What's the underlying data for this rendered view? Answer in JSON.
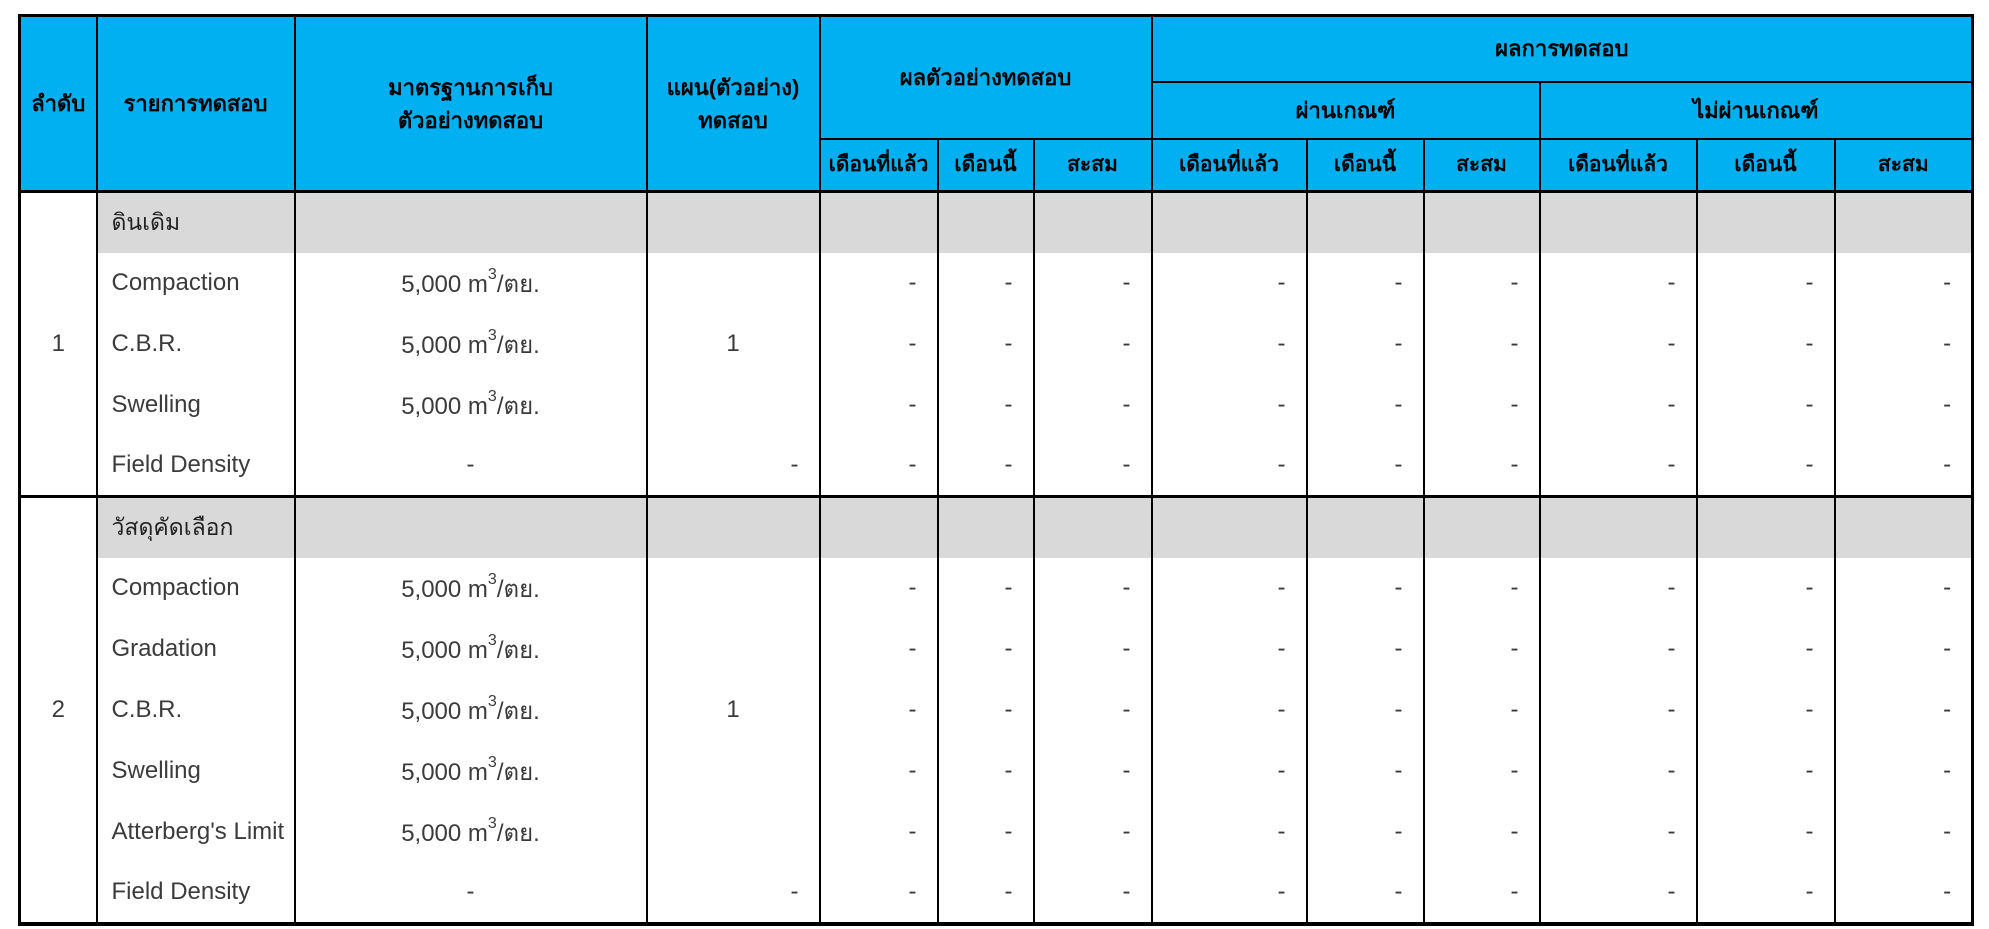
{
  "table": {
    "header": {
      "col_no": "ลำดับ",
      "col_item": "รายการทดสอบ",
      "col_standard_line1": "มาตรฐานการเก็บ",
      "col_standard_line2": "ตัวอย่างทดสอบ",
      "col_plan_line1": "แผน(ตัวอย่าง)",
      "col_plan_line2": "ทดสอบ",
      "group_sample_result": "ผลตัวอย่างทดสอบ",
      "group_test_result": "ผลการทดสอบ",
      "group_pass": "ผ่านเกณฑ์",
      "group_fail": "ไม่ผ่านเกณฑ์",
      "subcols": [
        "เดือนที่แล้ว",
        "เดือนนี้",
        "สะสม",
        "เดือนที่แล้ว",
        "เดือนนี้",
        "สะสม",
        "เดือนที่แล้ว",
        "เดือนนี้",
        "สะสม"
      ]
    },
    "sections": [
      {
        "no": "1",
        "title": "ดินเดิม",
        "plan": "1",
        "rows": [
          {
            "name": "Compaction",
            "standard": {
              "base": "5,000 m",
              "sup": "3",
              "unit": "/ตย."
            },
            "results": [
              "-",
              "-",
              "-",
              "-",
              "-",
              "-",
              "-",
              "-",
              "-"
            ]
          },
          {
            "name": "C.B.R.",
            "standard": {
              "base": "5,000 m",
              "sup": "3",
              "unit": "/ตย."
            },
            "results": [
              "-",
              "-",
              "-",
              "-",
              "-",
              "-",
              "-",
              "-",
              "-"
            ]
          },
          {
            "name": "Swelling",
            "standard": {
              "base": "5,000 m",
              "sup": "3",
              "unit": "/ตย."
            },
            "results": [
              "-",
              "-",
              "-",
              "-",
              "-",
              "-",
              "-",
              "-",
              "-"
            ]
          },
          {
            "name": "Field Density",
            "standard_dash": "-",
            "plan_dash": "-",
            "results": [
              "-",
              "-",
              "-",
              "-",
              "-",
              "-",
              "-",
              "-",
              "-"
            ]
          }
        ]
      },
      {
        "no": "2",
        "title": "วัสดุคัดเลือก",
        "plan": "1",
        "rows": [
          {
            "name": "Compaction",
            "standard": {
              "base": "5,000 m",
              "sup": "3",
              "unit": "/ตย."
            },
            "results": [
              "-",
              "-",
              "-",
              "-",
              "-",
              "-",
              "-",
              "-",
              "-"
            ]
          },
          {
            "name": "Gradation",
            "standard": {
              "base": "5,000 m",
              "sup": "3",
              "unit": "/ตย."
            },
            "results": [
              "-",
              "-",
              "-",
              "-",
              "-",
              "-",
              "-",
              "-",
              "-"
            ]
          },
          {
            "name": "C.B.R.",
            "standard": {
              "base": "5,000 m",
              "sup": "3",
              "unit": "/ตย."
            },
            "results": [
              "-",
              "-",
              "-",
              "-",
              "-",
              "-",
              "-",
              "-",
              "-"
            ]
          },
          {
            "name": "Swelling",
            "standard": {
              "base": "5,000 m",
              "sup": "3",
              "unit": "/ตย."
            },
            "results": [
              "-",
              "-",
              "-",
              "-",
              "-",
              "-",
              "-",
              "-",
              "-"
            ]
          },
          {
            "name": "Atterberg's Limit",
            "standard": {
              "base": "5,000 m",
              "sup": "3",
              "unit": "/ตย."
            },
            "results": [
              "-",
              "-",
              "-",
              "-",
              "-",
              "-",
              "-",
              "-",
              "-"
            ]
          },
          {
            "name": "Field Density",
            "standard_dash": "-",
            "plan_dash": "-",
            "results": [
              "-",
              "-",
              "-",
              "-",
              "-",
              "-",
              "-",
              "-",
              "-"
            ]
          }
        ]
      }
    ]
  },
  "colors": {
    "header_bg": "#00B0F0",
    "section_row_bg": "#D9D9D9",
    "border": "#000000",
    "body_text": "#3B3B3B",
    "header_text": "#000000"
  }
}
